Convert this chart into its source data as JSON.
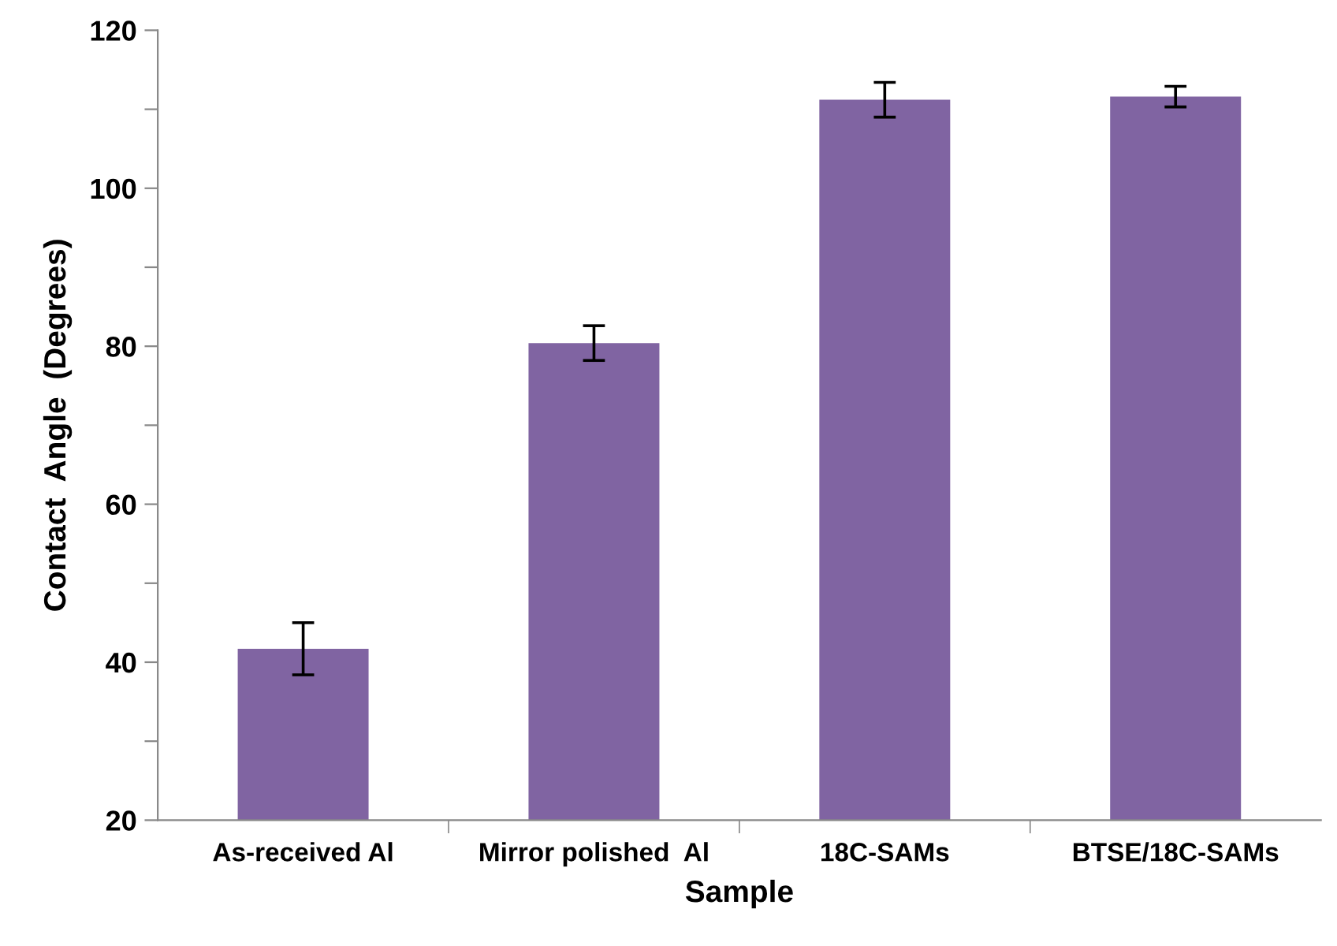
{
  "chart_data": {
    "type": "bar",
    "xlabel": "Sample",
    "ylabel": "Contact  Angle  (Degrees)",
    "categories": [
      "As-received Al",
      "Mirror polished  Al",
      "18C-SAMs",
      "BTSE/18C-SAMs"
    ],
    "values": [
      41.7,
      80.4,
      111.2,
      111.6
    ],
    "errors": [
      3.3,
      2.2,
      2.2,
      1.3
    ],
    "color": "#8064a2",
    "ylim": [
      20,
      120
    ],
    "yticks": [
      20,
      {
        "value": 30,
        "label": null
      },
      40,
      {
        "value": 50,
        "label": null
      },
      60,
      {
        "value": 70,
        "label": null
      },
      80,
      {
        "value": 90,
        "label": null
      },
      100,
      {
        "value": 110,
        "label": null
      },
      120
    ],
    "grid": false,
    "legend": false
  }
}
